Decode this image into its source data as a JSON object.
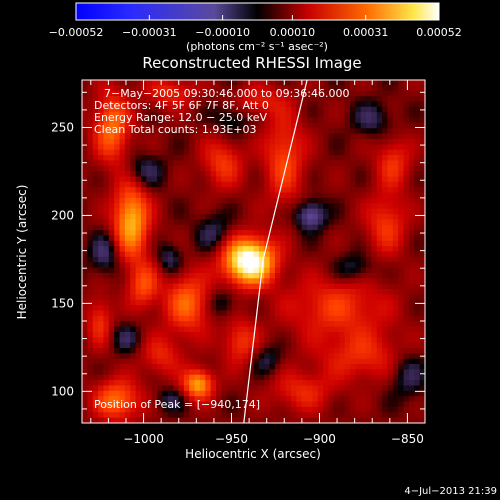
{
  "chart_data": {
    "type": "heatmap",
    "title": "Reconstructed RHESSI Image",
    "xlabel": "Heliocentric X (arcsec)",
    "ylabel": "Heliocentric Y (arcsec)",
    "xlim": [
      -1035,
      -840
    ],
    "ylim": [
      82,
      277
    ],
    "x_ticks": [
      -1000,
      -950,
      -900,
      -850
    ],
    "x_tick_labels": [
      "−1000",
      "−950",
      "−900",
      "−850"
    ],
    "y_ticks": [
      100,
      150,
      200,
      250
    ],
    "y_tick_labels": [
      "100",
      "150",
      "200",
      "250"
    ],
    "colorbar": {
      "range": [
        -0.00052,
        0.00052
      ],
      "ticks": [
        -0.00052,
        -0.00031,
        -0.0001,
        0.0001,
        0.00031,
        0.00052
      ],
      "tick_labels": [
        "−0.00052",
        "−0.00031",
        "−0.00010",
        "0.00010",
        "0.00031",
        "0.00052"
      ],
      "unit_label": "(photons cm⁻² s⁻¹ asec⁻²)"
    },
    "annotations": [
      "7−May−2005 09:30:46.000 to 09:36:46.000",
      "Detectors: 4F 5F 6F 7F 8F, Att 0",
      "Energy Range: 12.0 − 25.0 keV",
      "Clean     Total counts: 1.93E+03"
    ],
    "peak_label": "Position of Peak = [−940,174]",
    "peak": [
      -940,
      174
    ],
    "limb_line": [
      [
        -943,
        82
      ],
      [
        -932,
        175
      ],
      [
        -907,
        277
      ]
    ],
    "sources": [
      {
        "x": -940,
        "y": 174,
        "sx": 10,
        "sy": 9,
        "amp": 1.0
      },
      {
        "x": -1007,
        "y": 197,
        "sx": 7,
        "sy": 15,
        "amp": 0.62
      },
      {
        "x": -1018,
        "y": 250,
        "sx": 7,
        "sy": 14,
        "amp": 0.45
      },
      {
        "x": -969,
        "y": 104,
        "sx": 6,
        "sy": 6,
        "amp": 0.58
      },
      {
        "x": -1015,
        "y": 95,
        "sx": 9,
        "sy": 8,
        "amp": 0.45
      },
      {
        "x": -975,
        "y": 150,
        "sx": 9,
        "sy": 12,
        "amp": 0.42
      },
      {
        "x": -1000,
        "y": 160,
        "sx": 6,
        "sy": 9,
        "amp": 0.35
      },
      {
        "x": -920,
        "y": 232,
        "sx": 8,
        "sy": 18,
        "amp": 0.34
      },
      {
        "x": -955,
        "y": 230,
        "sx": 8,
        "sy": 10,
        "amp": 0.3
      },
      {
        "x": -890,
        "y": 148,
        "sx": 20,
        "sy": 12,
        "amp": 0.3
      },
      {
        "x": -862,
        "y": 195,
        "sx": 8,
        "sy": 12,
        "amp": 0.3
      },
      {
        "x": -858,
        "y": 230,
        "sx": 7,
        "sy": 10,
        "amp": 0.28
      },
      {
        "x": -875,
        "y": 120,
        "sx": 18,
        "sy": 10,
        "amp": 0.26
      },
      {
        "x": -910,
        "y": 100,
        "sx": 12,
        "sy": 8,
        "amp": 0.25
      },
      {
        "x": -945,
        "y": 128,
        "sx": 7,
        "sy": 9,
        "amp": 0.3
      },
      {
        "x": -985,
        "y": 270,
        "sx": 10,
        "sy": 6,
        "amp": 0.25
      },
      {
        "x": -935,
        "y": 265,
        "sx": 10,
        "sy": 6,
        "amp": 0.22
      },
      {
        "x": -990,
        "y": 120,
        "sx": 8,
        "sy": 8,
        "amp": 0.24
      },
      {
        "x": -1025,
        "y": 140,
        "sx": 5,
        "sy": 10,
        "amp": 0.28
      },
      {
        "x": -905,
        "y": 200,
        "sx": 6,
        "sy": 6,
        "amp": -0.38
      },
      {
        "x": -1000,
        "y": 225,
        "sx": 8,
        "sy": 7,
        "amp": -0.22
      },
      {
        "x": -1022,
        "y": 178,
        "sx": 6,
        "sy": 8,
        "amp": -0.25
      },
      {
        "x": -960,
        "y": 190,
        "sx": 7,
        "sy": 8,
        "amp": -0.2
      },
      {
        "x": -985,
        "y": 175,
        "sx": 5,
        "sy": 6,
        "amp": -0.22
      },
      {
        "x": -955,
        "y": 150,
        "sx": 6,
        "sy": 6,
        "amp": -0.18
      },
      {
        "x": -880,
        "y": 170,
        "sx": 8,
        "sy": 6,
        "amp": -0.2
      },
      {
        "x": -850,
        "y": 110,
        "sx": 8,
        "sy": 10,
        "amp": -0.22
      },
      {
        "x": -930,
        "y": 118,
        "sx": 6,
        "sy": 6,
        "amp": -0.18
      },
      {
        "x": -950,
        "y": 255,
        "sx": 7,
        "sy": 7,
        "amp": -0.18
      },
      {
        "x": -870,
        "y": 255,
        "sx": 8,
        "sy": 7,
        "amp": -0.2
      },
      {
        "x": -1010,
        "y": 130,
        "sx": 6,
        "sy": 6,
        "amp": -0.18
      },
      {
        "x": -985,
        "y": 95,
        "sx": 6,
        "sy": 5,
        "amp": -0.18
      }
    ]
  },
  "footer": {
    "timestamp": "4−Jul−2013 21:39"
  }
}
